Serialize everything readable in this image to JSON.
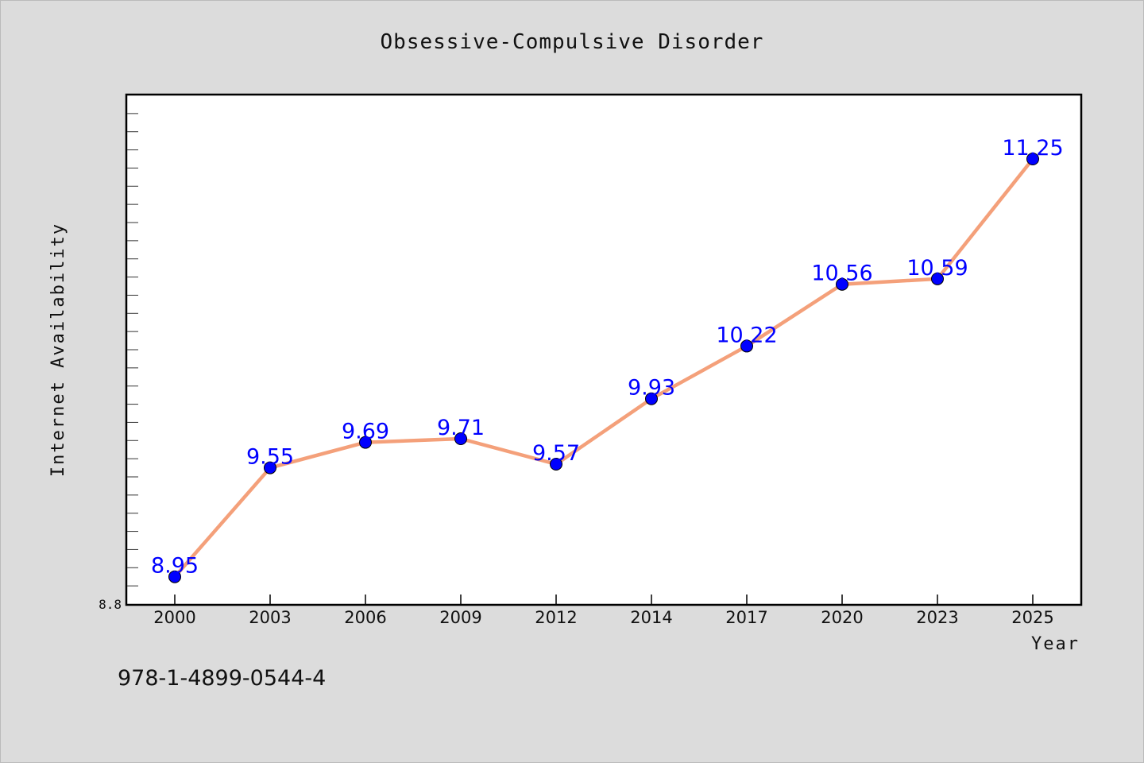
{
  "chart_data": {
    "type": "line",
    "title": "Obsessive-Compulsive Disorder",
    "xlabel": "Year",
    "ylabel": "Internet Availability",
    "categories": [
      "2000",
      "2003",
      "2006",
      "2009",
      "2012",
      "2014",
      "2017",
      "2020",
      "2023",
      "2025"
    ],
    "series": [
      {
        "values": [
          8.95,
          9.55,
          9.69,
          9.71,
          9.57,
          9.93,
          10.22,
          10.56,
          10.59,
          11.25
        ],
        "labels": [
          "8.95",
          "9.55",
          "9.69",
          "9.71",
          "9.57",
          "9.93",
          "10.22",
          "10.56",
          "10.59",
          "11.25"
        ]
      }
    ],
    "yticks": [
      "8.8"
    ],
    "ylim": [
      8.8,
      11.6
    ],
    "grid": false,
    "line_color": "#f4a07a",
    "marker_color": "#0000ff",
    "label_color": "#0000ff"
  },
  "footer": {
    "isbn": "978-1-4899-0544-4"
  }
}
